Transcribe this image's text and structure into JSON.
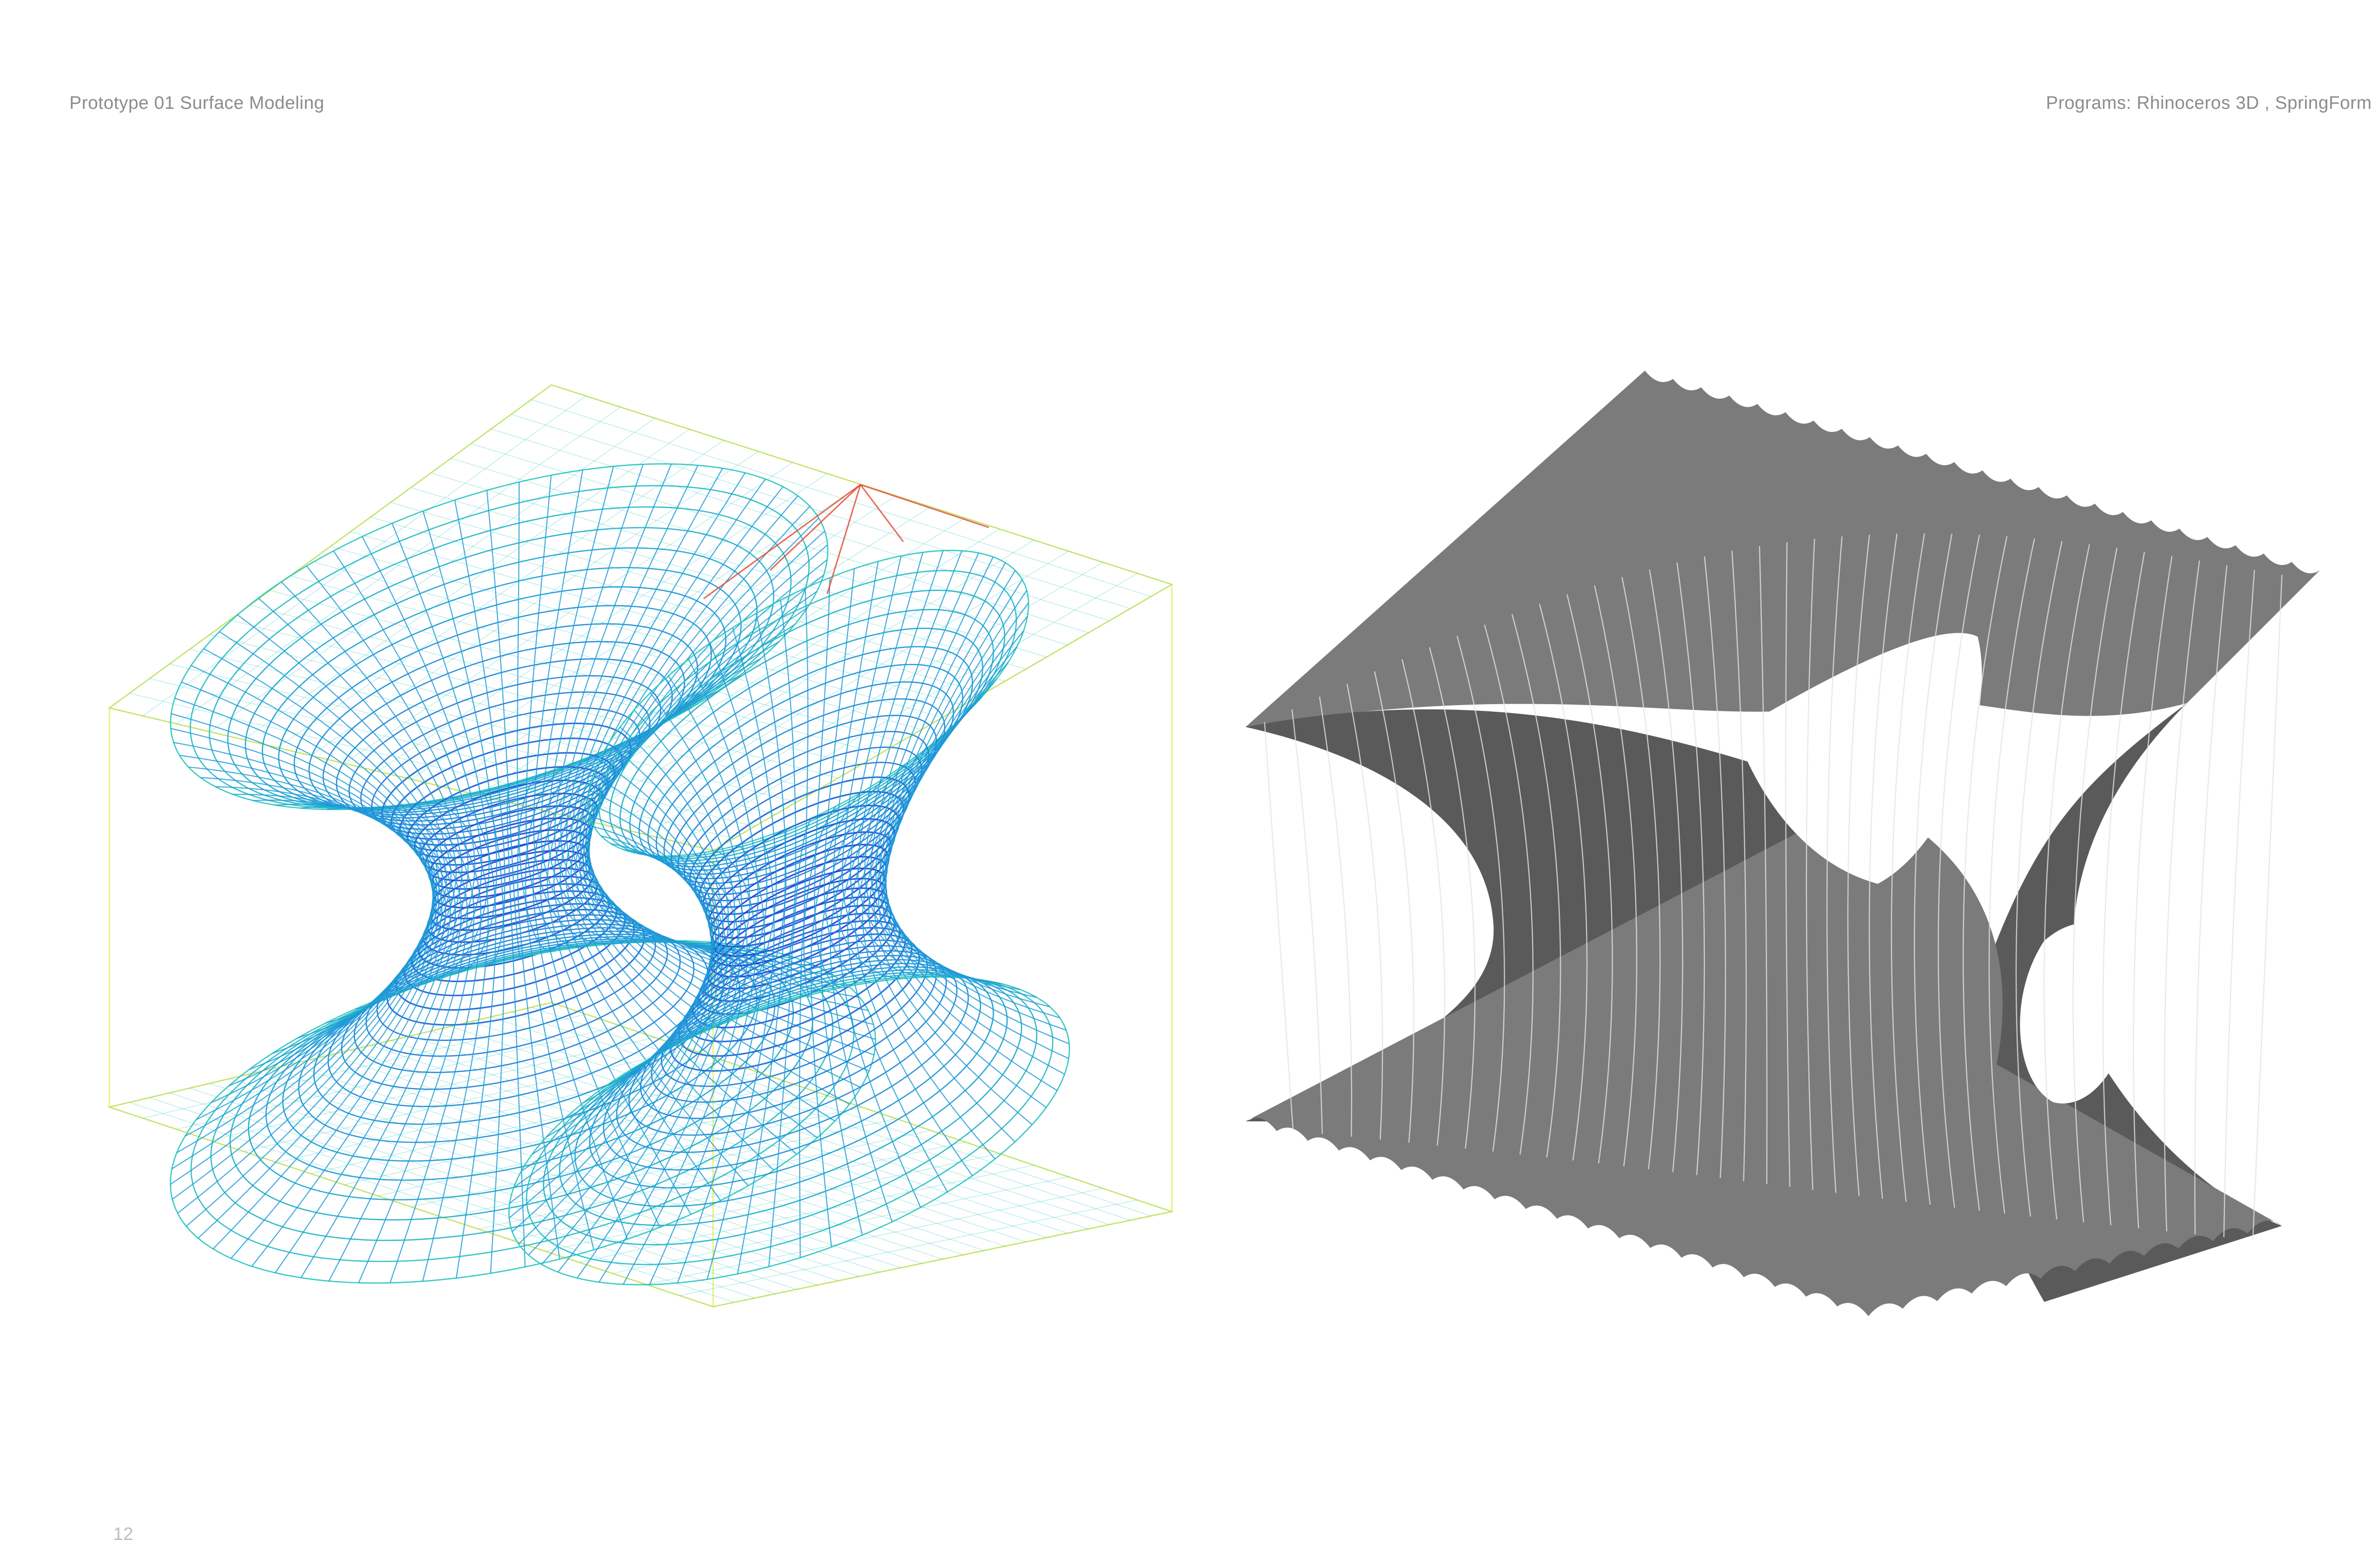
{
  "header": {
    "left_title": "Prototype 01 Surface Modeling",
    "right_title": "Programs: Rhinoceros 3D , SpringForm"
  },
  "footer": {
    "page_number": "12"
  },
  "figures": {
    "wireframe": {
      "icon": "mesh-wireframe-render",
      "colors": {
        "dense": "#1f3fd6",
        "mid": "#1e9bd8",
        "sparse": "#2cc7c0",
        "edge": "#e6e84a",
        "stress": "#e0503a"
      }
    },
    "shaded": {
      "icon": "shaded-surface-render",
      "colors": {
        "surface": "#7b7b7b",
        "shadow": "#5a5a5a",
        "lines": "#e4e4e4"
      }
    }
  }
}
